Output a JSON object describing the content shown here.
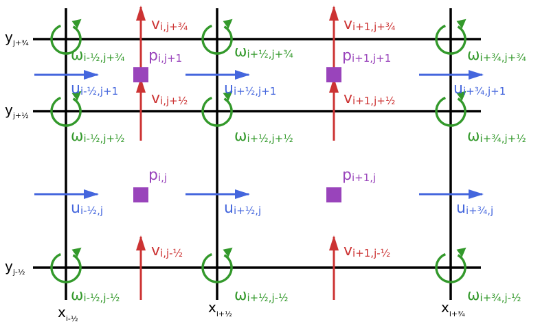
{
  "colors": {
    "grid": "#000000",
    "u": "#4466dd",
    "v": "#cc3333",
    "omega": "#33992b",
    "p": "#9944bb"
  },
  "axes": {
    "x": [
      {
        "base": "x",
        "sub": "i-½"
      },
      {
        "base": "x",
        "sub": "i+½"
      },
      {
        "base": "x",
        "sub": "i+¾"
      }
    ],
    "y": [
      {
        "base": "y",
        "sub": "j+¾"
      },
      {
        "base": "y",
        "sub": "j+½"
      },
      {
        "base": "y",
        "sub": "j-½"
      }
    ]
  },
  "labels": {
    "omega": [
      {
        "base": "ω",
        "sub": "i-½,j+¾"
      },
      {
        "base": "ω",
        "sub": "i+½,j+¾"
      },
      {
        "base": "ω",
        "sub": "i+¾,j+¾"
      },
      {
        "base": "ω",
        "sub": "i-½,j+½"
      },
      {
        "base": "ω",
        "sub": "i+½,j+½"
      },
      {
        "base": "ω",
        "sub": "i+¾,j+½"
      },
      {
        "base": "ω",
        "sub": "i-½,j-½"
      },
      {
        "base": "ω",
        "sub": "i+½,j-½"
      },
      {
        "base": "ω",
        "sub": "i+¾,j-½"
      }
    ],
    "u": [
      {
        "base": "u",
        "sub": "i-½,j+1"
      },
      {
        "base": "u",
        "sub": "i+½,j+1"
      },
      {
        "base": "u",
        "sub": "i+¾,j+1"
      },
      {
        "base": "u",
        "sub": "i-½,j"
      },
      {
        "base": "u",
        "sub": "i+½,j"
      },
      {
        "base": "u",
        "sub": "i+¾,j"
      }
    ],
    "v": [
      {
        "base": "v",
        "sub": "i,j+¾"
      },
      {
        "base": "v",
        "sub": "i+1,j+¾"
      },
      {
        "base": "v",
        "sub": "i,j+½"
      },
      {
        "base": "v",
        "sub": "i+1,j+½"
      },
      {
        "base": "v",
        "sub": "i,j-½"
      },
      {
        "base": "v",
        "sub": "i+1,j-½"
      }
    ],
    "p": [
      {
        "base": "p",
        "sub": "i,j+1"
      },
      {
        "base": "p",
        "sub": "i+1,j+1"
      },
      {
        "base": "p",
        "sub": "i,j"
      },
      {
        "base": "p",
        "sub": "i+1,j"
      }
    ]
  }
}
